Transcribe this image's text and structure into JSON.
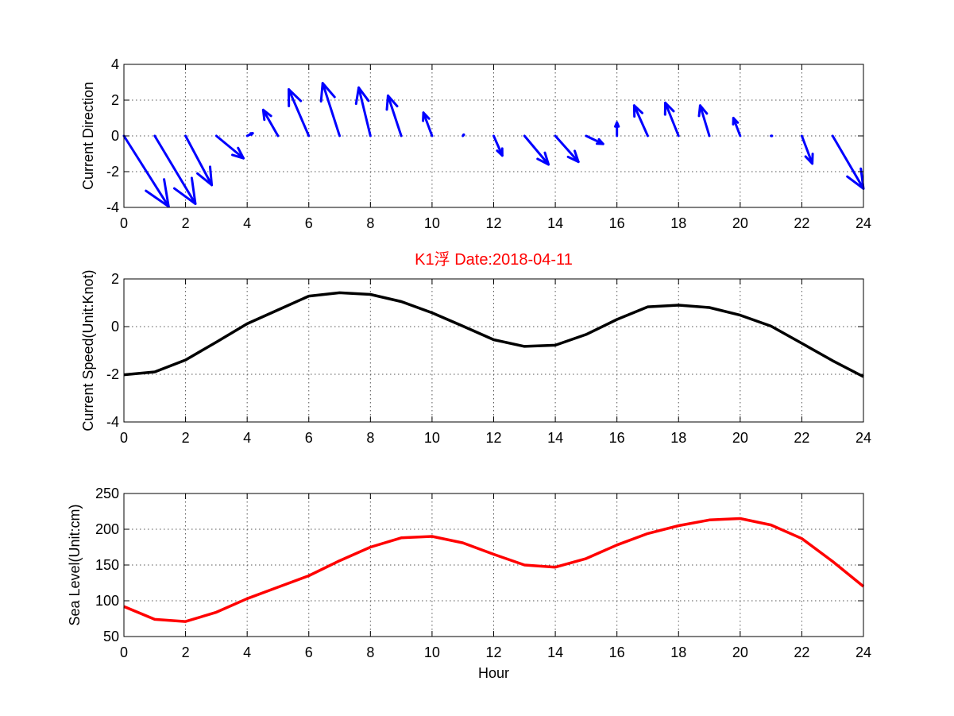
{
  "colors": {
    "direction_arrows": "#0000ff",
    "speed_line": "#000000",
    "sea_level_line": "#ff0000",
    "title": "#ff0000"
  },
  "chart_data": [
    {
      "type": "quiver",
      "ylabel": "Current Direction",
      "xlim": [
        0,
        24
      ],
      "ylim": [
        -4,
        4
      ],
      "xticks": [
        "0",
        "2",
        "4",
        "6",
        "8",
        "10",
        "12",
        "14",
        "16",
        "18",
        "20",
        "22",
        "24"
      ],
      "yticks": [
        "-4",
        "-2",
        "0",
        "2",
        "4"
      ],
      "grid": true,
      "arrows": {
        "x": [
          0,
          1,
          2,
          3,
          4,
          5,
          6,
          7,
          8,
          9,
          10,
          11,
          12,
          13,
          14,
          15,
          16,
          17,
          18,
          19,
          20,
          21,
          22,
          23
        ],
        "u": [
          1.45,
          1.32,
          0.85,
          0.88,
          0.18,
          -0.48,
          -0.65,
          -0.55,
          -0.38,
          -0.43,
          -0.28,
          0.03,
          0.28,
          0.78,
          0.75,
          0.55,
          0.0,
          -0.44,
          -0.43,
          -0.3,
          -0.22,
          0.03,
          0.34,
          1.0
        ],
        "v": [
          -3.95,
          -3.8,
          -2.75,
          -1.25,
          0.15,
          1.45,
          2.6,
          2.95,
          2.7,
          2.25,
          1.3,
          0.07,
          -1.1,
          -1.6,
          -1.45,
          -0.45,
          0.75,
          1.7,
          1.85,
          1.7,
          1.0,
          0.0,
          -1.55,
          -2.95
        ]
      }
    },
    {
      "type": "line",
      "title": "K1浮    Date:2018-04-11",
      "ylabel": "Current Speed(Unit:Knot)",
      "xlim": [
        0,
        24
      ],
      "ylim": [
        -4,
        2
      ],
      "xticks": [
        "0",
        "2",
        "4",
        "6",
        "8",
        "10",
        "12",
        "14",
        "16",
        "18",
        "20",
        "22",
        "24"
      ],
      "yticks": [
        "-4",
        "-2",
        "0",
        "2"
      ],
      "grid": true,
      "series": [
        {
          "x": [
            0,
            1,
            2,
            3,
            4,
            5,
            6,
            7,
            8,
            9,
            10,
            11,
            12,
            13,
            14,
            15,
            16,
            17,
            18,
            19,
            20,
            21,
            22,
            23,
            24
          ],
          "values": [
            -2.02,
            -1.9,
            -1.4,
            -0.65,
            0.12,
            0.7,
            1.28,
            1.42,
            1.35,
            1.05,
            0.58,
            0.02,
            -0.55,
            -0.83,
            -0.78,
            -0.33,
            0.3,
            0.83,
            0.9,
            0.8,
            0.48,
            0.02,
            -0.7,
            -1.43,
            -2.1
          ]
        }
      ]
    },
    {
      "type": "line",
      "xlabel": "Hour",
      "ylabel": "Sea Level(Unit:cm)",
      "xlim": [
        0,
        24
      ],
      "ylim": [
        50,
        250
      ],
      "xticks": [
        "0",
        "2",
        "4",
        "6",
        "8",
        "10",
        "12",
        "14",
        "16",
        "18",
        "20",
        "22",
        "24"
      ],
      "yticks": [
        "50",
        "100",
        "150",
        "200",
        "250"
      ],
      "grid": true,
      "series": [
        {
          "x": [
            0,
            1,
            2,
            3,
            4,
            5,
            6,
            7,
            8,
            9,
            10,
            11,
            12,
            13,
            14,
            15,
            16,
            17,
            18,
            19,
            20,
            21,
            22,
            23,
            24
          ],
          "values": [
            92,
            74,
            71,
            84,
            103,
            119,
            135,
            156,
            175,
            188,
            190,
            181,
            165,
            150,
            147,
            159,
            178,
            194,
            205,
            213,
            215,
            206,
            187,
            155,
            120
          ]
        }
      ]
    }
  ]
}
